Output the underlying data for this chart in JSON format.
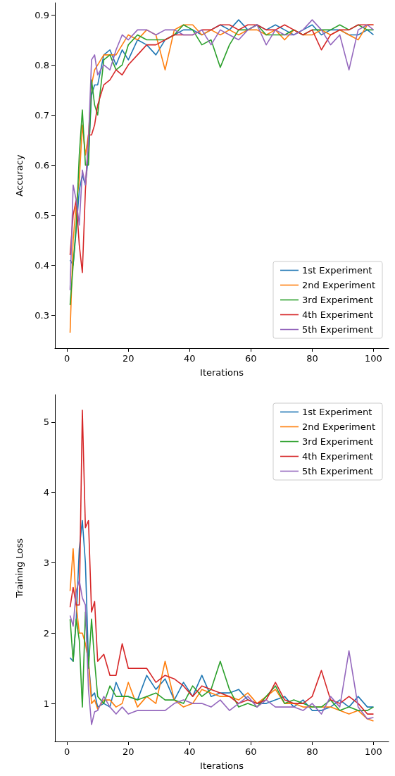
{
  "chart_data": [
    {
      "type": "line",
      "xlabel": "Iterations",
      "ylabel": "Accuracy",
      "legend": "bottom right",
      "xlim": [
        -3.95,
        104.95
      ],
      "xticks": [
        0,
        20,
        40,
        60,
        80,
        100
      ],
      "ylim": [
        0.234,
        0.924
      ],
      "yticks": [
        0.3,
        0.4,
        0.5,
        0.6,
        0.7,
        0.8,
        0.9
      ],
      "x": [
        1,
        2,
        3,
        4,
        5,
        6,
        7,
        8,
        9,
        10,
        12,
        14,
        16,
        18,
        20,
        23,
        26,
        29,
        32,
        35,
        38,
        41,
        44,
        47,
        50,
        53,
        56,
        59,
        62,
        65,
        68,
        71,
        74,
        77,
        80,
        83,
        86,
        89,
        92,
        95,
        98,
        100
      ],
      "series": [
        {
          "name": "1st Experiment",
          "color": "#1f77b4",
          "values": [
            0.41,
            0.4,
            0.47,
            0.55,
            0.58,
            0.56,
            0.62,
            0.74,
            0.76,
            0.76,
            0.82,
            0.83,
            0.8,
            0.83,
            0.81,
            0.85,
            0.84,
            0.82,
            0.85,
            0.86,
            0.87,
            0.87,
            0.86,
            0.87,
            0.88,
            0.87,
            0.89,
            0.87,
            0.88,
            0.87,
            0.88,
            0.87,
            0.86,
            0.87,
            0.88,
            0.86,
            0.87,
            0.87,
            0.86,
            0.86,
            0.87,
            0.86
          ]
        },
        {
          "name": "2nd Experiment",
          "color": "#ff7f0e",
          "values": [
            0.265,
            0.45,
            0.52,
            0.57,
            0.68,
            0.62,
            0.66,
            0.76,
            0.79,
            0.8,
            0.82,
            0.82,
            0.82,
            0.84,
            0.86,
            0.85,
            0.87,
            0.86,
            0.79,
            0.87,
            0.88,
            0.88,
            0.86,
            0.87,
            0.86,
            0.87,
            0.86,
            0.87,
            0.87,
            0.86,
            0.87,
            0.85,
            0.87,
            0.86,
            0.86,
            0.87,
            0.86,
            0.87,
            0.86,
            0.85,
            0.88,
            0.88
          ]
        },
        {
          "name": "3rd Experiment",
          "color": "#2ca02c",
          "values": [
            0.32,
            0.4,
            0.48,
            0.62,
            0.71,
            0.6,
            0.6,
            0.77,
            0.72,
            0.7,
            0.81,
            0.82,
            0.79,
            0.8,
            0.84,
            0.86,
            0.85,
            0.85,
            0.85,
            0.86,
            0.88,
            0.87,
            0.84,
            0.85,
            0.795,
            0.84,
            0.87,
            0.87,
            0.88,
            0.86,
            0.86,
            0.86,
            0.87,
            0.86,
            0.87,
            0.87,
            0.87,
            0.88,
            0.87,
            0.88,
            0.87,
            0.87
          ]
        },
        {
          "name": "4th Experiment",
          "color": "#d62728",
          "values": [
            0.42,
            0.5,
            0.53,
            0.44,
            0.385,
            0.55,
            0.66,
            0.66,
            0.68,
            0.72,
            0.76,
            0.77,
            0.79,
            0.78,
            0.8,
            0.82,
            0.84,
            0.84,
            0.85,
            0.86,
            0.86,
            0.86,
            0.87,
            0.87,
            0.88,
            0.88,
            0.87,
            0.88,
            0.88,
            0.87,
            0.87,
            0.88,
            0.87,
            0.86,
            0.87,
            0.83,
            0.86,
            0.87,
            0.87,
            0.88,
            0.88,
            0.88
          ]
        },
        {
          "name": "5th Experiment",
          "color": "#9467bd",
          "values": [
            0.35,
            0.56,
            0.53,
            0.48,
            0.59,
            0.56,
            0.65,
            0.81,
            0.82,
            0.78,
            0.8,
            0.79,
            0.83,
            0.86,
            0.85,
            0.87,
            0.87,
            0.86,
            0.87,
            0.87,
            0.86,
            0.86,
            0.87,
            0.84,
            0.87,
            0.86,
            0.85,
            0.87,
            0.88,
            0.84,
            0.87,
            0.86,
            0.86,
            0.87,
            0.89,
            0.87,
            0.84,
            0.86,
            0.79,
            0.87,
            0.88,
            0.87
          ]
        }
      ]
    },
    {
      "type": "line",
      "xlabel": "Iterations",
      "ylabel": "Training Loss",
      "legend": "top right",
      "xlim": [
        -3.95,
        104.95
      ],
      "xticks": [
        0,
        20,
        40,
        60,
        80,
        100
      ],
      "ylim": [
        0.46,
        5.39
      ],
      "yticks": [
        1,
        2,
        3,
        4,
        5
      ],
      "x": [
        1,
        2,
        3,
        4,
        5,
        6,
        7,
        8,
        9,
        10,
        12,
        14,
        16,
        18,
        20,
        23,
        26,
        29,
        32,
        35,
        38,
        41,
        44,
        47,
        50,
        53,
        56,
        59,
        62,
        65,
        68,
        71,
        74,
        77,
        80,
        83,
        86,
        89,
        92,
        95,
        98,
        100
      ],
      "series": [
        {
          "name": "1st Experiment",
          "color": "#1f77b4",
          "values": [
            1.65,
            1.6,
            2.2,
            3.2,
            3.6,
            3.0,
            1.6,
            1.1,
            1.15,
            0.95,
            1.0,
            0.95,
            1.3,
            1.1,
            1.1,
            1.05,
            1.4,
            1.2,
            1.35,
            1.05,
            1.3,
            1.1,
            1.4,
            1.1,
            1.15,
            1.15,
            1.2,
            1.05,
            1.0,
            1.0,
            1.05,
            1.1,
            0.95,
            1.05,
            0.9,
            0.9,
            0.95,
            1.05,
            0.95,
            1.1,
            0.95,
            0.95
          ]
        },
        {
          "name": "2nd Experiment",
          "color": "#ff7f0e",
          "values": [
            2.6,
            3.2,
            2.4,
            2.0,
            2.0,
            1.85,
            1.6,
            1.0,
            1.05,
            0.92,
            1.05,
            1.05,
            0.95,
            1.0,
            1.3,
            0.95,
            1.1,
            1.0,
            1.6,
            1.05,
            0.95,
            1.0,
            1.2,
            1.15,
            1.1,
            1.1,
            1.05,
            1.15,
            1.0,
            1.1,
            1.2,
            1.0,
            1.0,
            0.95,
            0.95,
            0.95,
            0.95,
            0.9,
            0.85,
            0.9,
            0.78,
            0.75
          ]
        },
        {
          "name": "3rd Experiment",
          "color": "#2ca02c",
          "values": [
            2.2,
            1.6,
            2.2,
            1.9,
            0.95,
            2.3,
            1.5,
            2.2,
            1.6,
            1.1,
            1.0,
            1.25,
            1.1,
            1.1,
            1.1,
            1.05,
            1.1,
            1.15,
            1.05,
            1.05,
            1.0,
            1.25,
            1.1,
            1.2,
            1.6,
            1.2,
            0.95,
            1.0,
            0.95,
            1.1,
            1.25,
            1.0,
            1.05,
            1.0,
            0.95,
            0.95,
            1.05,
            0.9,
            0.95,
            0.9,
            0.9,
            0.95
          ]
        },
        {
          "name": "4th Experiment",
          "color": "#d62728",
          "values": [
            2.37,
            2.65,
            2.4,
            2.4,
            5.17,
            3.5,
            3.6,
            2.3,
            2.45,
            1.6,
            1.7,
            1.4,
            1.4,
            1.85,
            1.5,
            1.5,
            1.5,
            1.3,
            1.4,
            1.35,
            1.25,
            1.1,
            1.25,
            1.2,
            1.15,
            1.1,
            1.0,
            1.05,
            1.0,
            1.05,
            1.3,
            1.05,
            1.0,
            1.0,
            1.1,
            1.47,
            1.05,
            1.0,
            1.1,
            1.0,
            0.85,
            0.85
          ]
        },
        {
          "name": "5th Experiment",
          "color": "#9467bd",
          "values": [
            2.25,
            2.1,
            2.6,
            2.75,
            2.5,
            2.4,
            1.2,
            0.7,
            0.88,
            0.9,
            1.1,
            0.95,
            0.85,
            0.95,
            0.85,
            0.9,
            0.9,
            0.9,
            0.9,
            1.0,
            1.05,
            1.0,
            1.0,
            0.95,
            1.05,
            0.9,
            1.0,
            1.1,
            0.95,
            1.05,
            0.95,
            0.95,
            0.95,
            0.9,
            1.0,
            0.85,
            1.1,
            0.95,
            1.75,
            0.95,
            0.78,
            0.8
          ]
        }
      ]
    }
  ]
}
